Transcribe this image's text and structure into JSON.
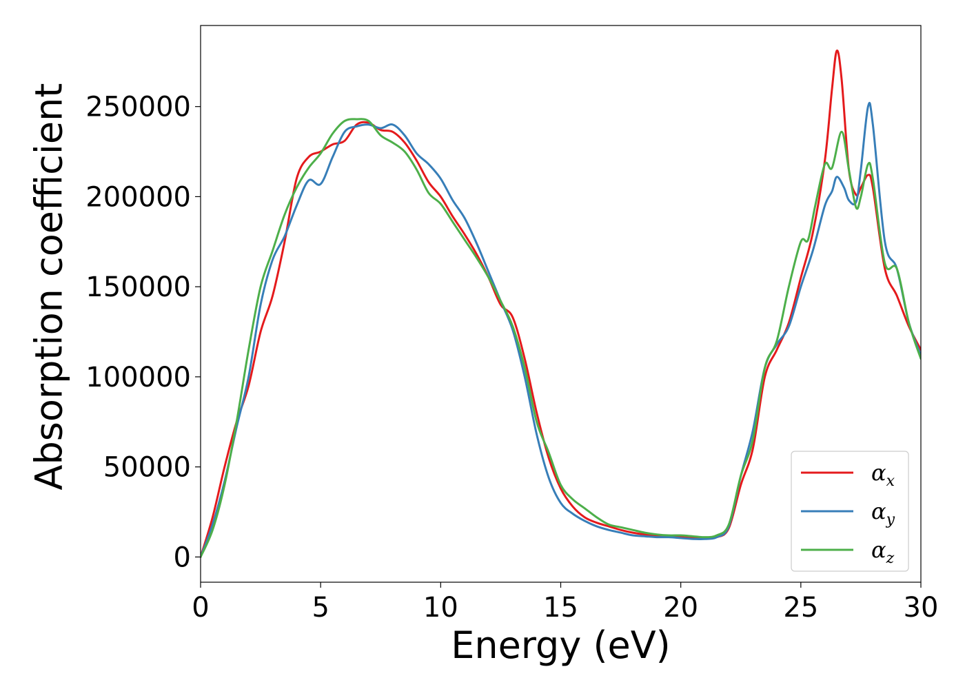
{
  "chart_data": {
    "type": "line",
    "title": "",
    "xlabel": "Energy (eV)",
    "ylabel": "Absorption coefficient",
    "xlim": [
      0,
      30
    ],
    "ylim": [
      -14000,
      295000
    ],
    "xticks": [
      0,
      5,
      10,
      15,
      20,
      25,
      30
    ],
    "yticks": [
      0,
      50000,
      100000,
      150000,
      200000,
      250000
    ],
    "grid": false,
    "legend_position": "lower-right",
    "series": [
      {
        "name": "αx",
        "legend_base": "α",
        "legend_sub": "x",
        "color": "#e41a1c",
        "points": [
          [
            0,
            0
          ],
          [
            0.5,
            22000
          ],
          [
            1.0,
            50000
          ],
          [
            1.5,
            75000
          ],
          [
            2.0,
            95000
          ],
          [
            2.5,
            125000
          ],
          [
            3.0,
            145000
          ],
          [
            3.5,
            175000
          ],
          [
            4.0,
            210000
          ],
          [
            4.5,
            222000
          ],
          [
            5.0,
            225000
          ],
          [
            5.5,
            229000
          ],
          [
            6.0,
            231000
          ],
          [
            6.5,
            240000
          ],
          [
            7.0,
            241000
          ],
          [
            7.5,
            237000
          ],
          [
            8.0,
            236000
          ],
          [
            8.5,
            230000
          ],
          [
            9.0,
            220000
          ],
          [
            9.5,
            208000
          ],
          [
            10.0,
            200000
          ],
          [
            10.5,
            189000
          ],
          [
            11.0,
            179000
          ],
          [
            11.5,
            168000
          ],
          [
            12.0,
            155000
          ],
          [
            12.5,
            140000
          ],
          [
            13.0,
            133000
          ],
          [
            13.5,
            110000
          ],
          [
            14.0,
            80000
          ],
          [
            14.5,
            55000
          ],
          [
            15.0,
            38000
          ],
          [
            15.5,
            28000
          ],
          [
            16.0,
            22000
          ],
          [
            16.5,
            19000
          ],
          [
            17.0,
            17000
          ],
          [
            17.5,
            15000
          ],
          [
            18.0,
            13500
          ],
          [
            18.5,
            12500
          ],
          [
            19.0,
            12000
          ],
          [
            19.5,
            11500
          ],
          [
            20.0,
            11000
          ],
          [
            20.5,
            10500
          ],
          [
            21.0,
            10500
          ],
          [
            21.5,
            11000
          ],
          [
            22.0,
            16000
          ],
          [
            22.5,
            40000
          ],
          [
            23.0,
            60000
          ],
          [
            23.5,
            100000
          ],
          [
            24.0,
            115000
          ],
          [
            24.5,
            130000
          ],
          [
            25.0,
            155000
          ],
          [
            25.5,
            180000
          ],
          [
            26.0,
            220000
          ],
          [
            26.3,
            260000
          ],
          [
            26.5,
            281000
          ],
          [
            26.7,
            265000
          ],
          [
            27.0,
            215000
          ],
          [
            27.3,
            201000
          ],
          [
            27.5,
            205000
          ],
          [
            27.8,
            212000
          ],
          [
            28.0,
            205000
          ],
          [
            28.5,
            160000
          ],
          [
            29.0,
            145000
          ],
          [
            29.5,
            128000
          ],
          [
            30.0,
            115000
          ]
        ]
      },
      {
        "name": "αy",
        "legend_base": "α",
        "legend_sub": "y",
        "color": "#377eb8",
        "points": [
          [
            0,
            0
          ],
          [
            0.5,
            18000
          ],
          [
            1.0,
            42000
          ],
          [
            1.5,
            72000
          ],
          [
            2.0,
            100000
          ],
          [
            2.5,
            140000
          ],
          [
            3.0,
            165000
          ],
          [
            3.5,
            178000
          ],
          [
            4.0,
            195000
          ],
          [
            4.5,
            209000
          ],
          [
            5.0,
            207000
          ],
          [
            5.5,
            222000
          ],
          [
            6.0,
            236000
          ],
          [
            6.5,
            239000
          ],
          [
            7.0,
            240000
          ],
          [
            7.5,
            238000
          ],
          [
            8.0,
            240000
          ],
          [
            8.5,
            234000
          ],
          [
            9.0,
            224000
          ],
          [
            9.5,
            218000
          ],
          [
            10.0,
            210000
          ],
          [
            10.5,
            198000
          ],
          [
            11.0,
            188000
          ],
          [
            11.5,
            174000
          ],
          [
            12.0,
            158000
          ],
          [
            12.5,
            142000
          ],
          [
            13.0,
            126000
          ],
          [
            13.5,
            100000
          ],
          [
            14.0,
            68000
          ],
          [
            14.5,
            44000
          ],
          [
            15.0,
            30000
          ],
          [
            15.5,
            24000
          ],
          [
            16.0,
            20000
          ],
          [
            16.5,
            17000
          ],
          [
            17.0,
            15000
          ],
          [
            17.5,
            13500
          ],
          [
            18.0,
            12000
          ],
          [
            18.5,
            11500
          ],
          [
            19.0,
            11000
          ],
          [
            19.5,
            11000
          ],
          [
            20.0,
            10500
          ],
          [
            20.5,
            10000
          ],
          [
            21.0,
            10000
          ],
          [
            21.5,
            11000
          ],
          [
            22.0,
            17000
          ],
          [
            22.5,
            45000
          ],
          [
            23.0,
            70000
          ],
          [
            23.5,
            105000
          ],
          [
            24.0,
            118000
          ],
          [
            24.5,
            128000
          ],
          [
            25.0,
            150000
          ],
          [
            25.5,
            170000
          ],
          [
            26.0,
            195000
          ],
          [
            26.3,
            203000
          ],
          [
            26.5,
            211000
          ],
          [
            26.8,
            205000
          ],
          [
            27.0,
            198000
          ],
          [
            27.3,
            197000
          ],
          [
            27.5,
            215000
          ],
          [
            27.8,
            250000
          ],
          [
            28.0,
            240000
          ],
          [
            28.5,
            175000
          ],
          [
            29.0,
            160000
          ],
          [
            29.5,
            130000
          ],
          [
            30.0,
            112000
          ]
        ]
      },
      {
        "name": "αz",
        "legend_base": "α",
        "legend_sub": "z",
        "color": "#4daf4a",
        "points": [
          [
            0,
            0
          ],
          [
            0.5,
            15000
          ],
          [
            1.0,
            40000
          ],
          [
            1.5,
            75000
          ],
          [
            2.0,
            115000
          ],
          [
            2.5,
            150000
          ],
          [
            3.0,
            170000
          ],
          [
            3.5,
            190000
          ],
          [
            4.0,
            205000
          ],
          [
            4.5,
            216000
          ],
          [
            5.0,
            224000
          ],
          [
            5.5,
            235000
          ],
          [
            6.0,
            242000
          ],
          [
            6.5,
            243000
          ],
          [
            7.0,
            242000
          ],
          [
            7.5,
            234000
          ],
          [
            8.0,
            230000
          ],
          [
            8.5,
            225000
          ],
          [
            9.0,
            215000
          ],
          [
            9.5,
            202000
          ],
          [
            10.0,
            196000
          ],
          [
            10.5,
            186000
          ],
          [
            11.0,
            176000
          ],
          [
            11.5,
            166000
          ],
          [
            12.0,
            155000
          ],
          [
            12.5,
            142000
          ],
          [
            13.0,
            128000
          ],
          [
            13.5,
            105000
          ],
          [
            14.0,
            75000
          ],
          [
            14.5,
            58000
          ],
          [
            15.0,
            40000
          ],
          [
            15.5,
            32000
          ],
          [
            16.0,
            27000
          ],
          [
            16.5,
            22000
          ],
          [
            17.0,
            18000
          ],
          [
            17.5,
            16500
          ],
          [
            18.0,
            15000
          ],
          [
            18.5,
            13500
          ],
          [
            19.0,
            12500
          ],
          [
            19.5,
            12000
          ],
          [
            20.0,
            12000
          ],
          [
            20.5,
            11500
          ],
          [
            21.0,
            11000
          ],
          [
            21.5,
            12000
          ],
          [
            22.0,
            18000
          ],
          [
            22.5,
            45000
          ],
          [
            23.0,
            65000
          ],
          [
            23.5,
            105000
          ],
          [
            24.0,
            120000
          ],
          [
            24.5,
            150000
          ],
          [
            25.0,
            175000
          ],
          [
            25.3,
            176000
          ],
          [
            25.6,
            195000
          ],
          [
            26.0,
            218000
          ],
          [
            26.3,
            216000
          ],
          [
            26.7,
            236000
          ],
          [
            27.0,
            215000
          ],
          [
            27.3,
            194000
          ],
          [
            27.5,
            200000
          ],
          [
            27.8,
            218000
          ],
          [
            28.0,
            210000
          ],
          [
            28.5,
            163000
          ],
          [
            29.0,
            160000
          ],
          [
            29.5,
            130000
          ],
          [
            30.0,
            110000
          ]
        ]
      }
    ]
  }
}
